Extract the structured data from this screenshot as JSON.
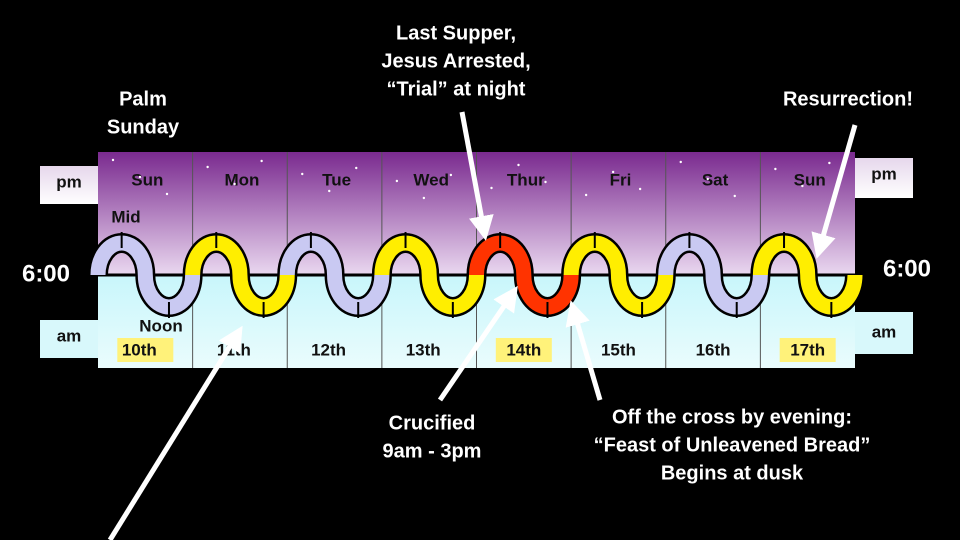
{
  "week": {
    "days": [
      "Sun",
      "Mon",
      "Tue",
      "Wed",
      "Thur",
      "Fri",
      "Sat",
      "Sun"
    ],
    "dates": [
      "10th",
      "11th",
      "12th",
      "13th",
      "14th",
      "15th",
      "16th",
      "17th"
    ],
    "pm_label": "pm",
    "am_label": "am",
    "time_label": "6:00",
    "mid_label": "Mid",
    "noon_label": "Noon"
  },
  "annotations": {
    "palm_sunday": [
      "Palm",
      "Sunday"
    ],
    "last_supper": [
      "Last Supper,",
      "Jesus Arrested,",
      "“Trial” at night"
    ],
    "resurrection": "Resurrection!",
    "crucified": [
      "Crucified",
      "9am - 3pm"
    ],
    "off_the_cross": [
      "Off the cross by evening:",
      "“Feast of Unleavened Bread”",
      "Begins at dusk"
    ]
  }
}
